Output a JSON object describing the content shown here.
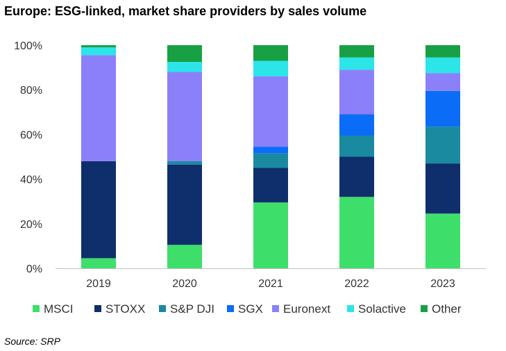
{
  "title": "Europe: ESG-linked, market share providers by sales volume",
  "source": "Source: SRP",
  "chart_data": {
    "type": "bar",
    "stacked": true,
    "title": "Europe: ESG-linked, market share providers by sales volume",
    "xlabel": "",
    "ylabel": "",
    "categories": [
      "2019",
      "2020",
      "2021",
      "2022",
      "2023"
    ],
    "ylim": [
      0,
      100
    ],
    "yticks": [
      0,
      20,
      40,
      60,
      80,
      100
    ],
    "ytick_labels": [
      "0%",
      "20%",
      "40%",
      "60%",
      "80%",
      "100%"
    ],
    "grid": false,
    "legend_position": "bottom",
    "series": [
      {
        "name": "MSCI",
        "color": "#3ddf6a",
        "values": [
          4.5,
          10.5,
          29.5,
          32,
          24.5
        ]
      },
      {
        "name": "STOXX",
        "color": "#0e2f6b",
        "values": [
          43.5,
          36,
          15.5,
          18,
          22.5
        ]
      },
      {
        "name": "S&P DJI",
        "color": "#1a8aa0",
        "values": [
          0,
          1.5,
          6.5,
          9.5,
          16.5
        ]
      },
      {
        "name": "SGX",
        "color": "#0a6cf7",
        "values": [
          0,
          0,
          3,
          9.5,
          16
        ]
      },
      {
        "name": "Euronext",
        "color": "#8c80fa",
        "values": [
          47.5,
          40,
          31.5,
          20,
          8
        ]
      },
      {
        "name": "Solactive",
        "color": "#2be5e8",
        "values": [
          3.5,
          4.5,
          7,
          5.5,
          7
        ]
      },
      {
        "name": "Other",
        "color": "#18a045",
        "values": [
          1,
          7.5,
          7,
          5.5,
          5.5
        ]
      }
    ]
  }
}
